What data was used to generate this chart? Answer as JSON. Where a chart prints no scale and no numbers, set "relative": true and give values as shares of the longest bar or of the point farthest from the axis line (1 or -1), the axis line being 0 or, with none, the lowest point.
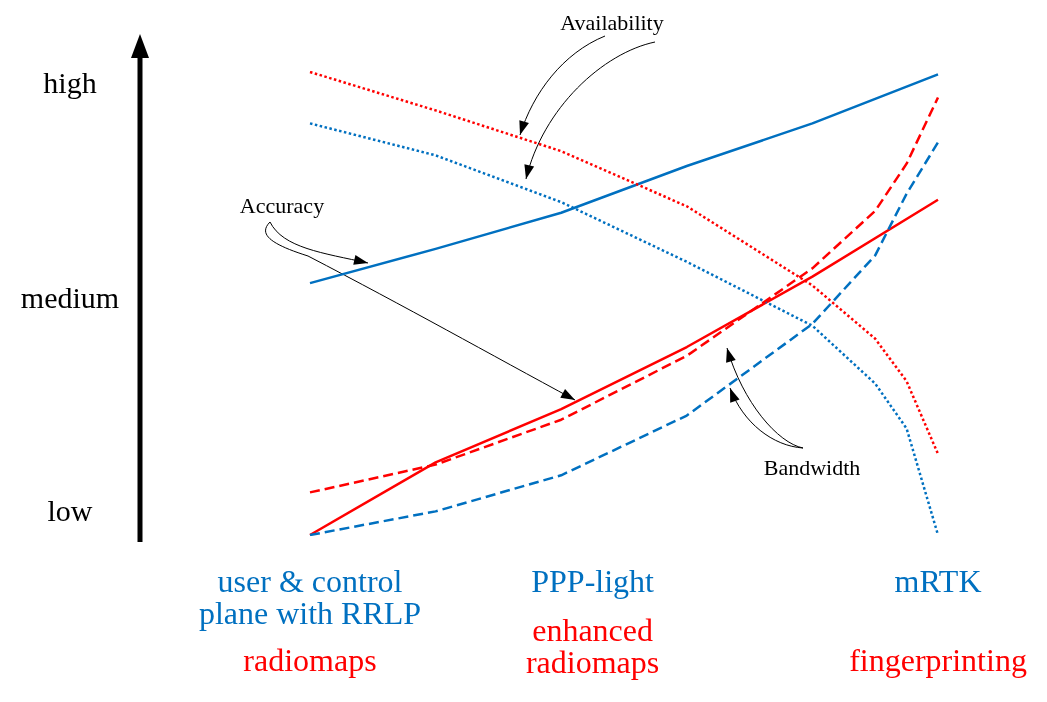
{
  "chart_data": {
    "type": "line",
    "relative": true,
    "marker": "none",
    "categories": [
      "user & control\nplane with RRLP",
      null,
      null,
      null,
      null,
      null,
      null,
      null,
      null,
      "PPP-light",
      null,
      null,
      null,
      null,
      null,
      null,
      null,
      null,
      null,
      null,
      "mRTK"
    ],
    "series": [
      {
        "color": "#0070c0",
        "line_style": "solid",
        "values": [
          0.544,
          null,
          null,
          null,
          0.618,
          null,
          null,
          null,
          0.696,
          null,
          null,
          null,
          0.797,
          null,
          null,
          null,
          0.889,
          null,
          null,
          null,
          0.995
        ]
      },
      {
        "color": "#ff0000",
        "line_style": "solid",
        "values": [
          0,
          null,
          null,
          null,
          0.157,
          null,
          null,
          null,
          0.272,
          null,
          null,
          null,
          0.406,
          null,
          null,
          null,
          0.558,
          null,
          null,
          null,
          0.724
        ]
      },
      {
        "color": "#ff0000",
        "line_style": "dotted",
        "values": [
          1,
          null,
          null,
          null,
          0.917,
          null,
          null,
          null,
          0.829,
          null,
          null,
          null,
          0.71,
          null,
          null,
          null,
          0.539,
          null,
          0.424,
          0.332,
          0.175
        ]
      },
      {
        "color": "#0070c0",
        "line_style": "dotted",
        "values": [
          0.889,
          null,
          null,
          null,
          0.82,
          null,
          null,
          null,
          0.719,
          null,
          null,
          null,
          0.59,
          null,
          null,
          null,
          0.452,
          null,
          0.327,
          0.23,
          0
        ]
      },
      {
        "color": "#ff0000",
        "line_style": "dashed",
        "values": [
          0.092,
          null,
          null,
          null,
          0.152,
          null,
          null,
          null,
          0.249,
          null,
          null,
          null,
          0.387,
          null,
          null,
          null,
          0.576,
          null,
          0.7,
          0.802,
          0.945
        ]
      },
      {
        "color": "#0070c0",
        "line_style": "dashed",
        "values": [
          0,
          null,
          null,
          null,
          0.051,
          null,
          null,
          null,
          0.129,
          null,
          null,
          null,
          0.258,
          null,
          null,
          null,
          0.456,
          null,
          0.604,
          0.737,
          0.848
        ]
      }
    ],
    "annotations": [
      "Availability",
      "Accuracy",
      "Bandwidth",
      "radiomaps",
      "enhanced\nradiomaps",
      "fingerprinting",
      "low",
      "medium",
      "high"
    ]
  }
}
